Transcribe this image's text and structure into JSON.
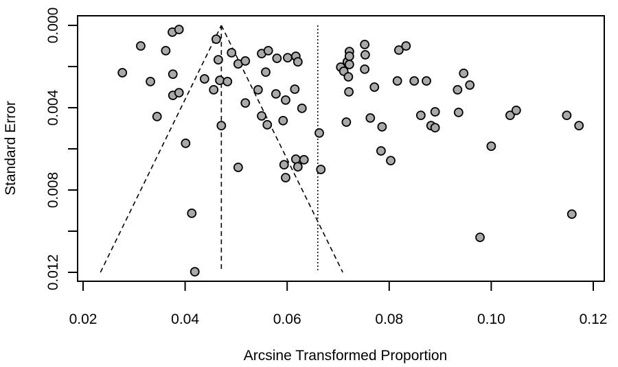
{
  "chart_data": {
    "type": "scatter",
    "subtype": "funnel plot",
    "title": "",
    "xlabel": "Arcsine Transformed Proportion",
    "ylabel": "Standard Error",
    "xlim": [
      0.0185,
      0.1225
    ],
    "ylim": [
      0.0,
      0.01245
    ],
    "y_reversed": true,
    "x_ticks": [
      0.02,
      0.04,
      0.06,
      0.08,
      0.1,
      0.12
    ],
    "x_tick_labels": [
      "0.02",
      "0.04",
      "0.06",
      "0.08",
      "0.10",
      "0.12"
    ],
    "y_ticks": [
      0.0,
      0.002,
      0.004,
      0.006,
      0.008,
      0.01,
      0.012
    ],
    "y_tick_labels": [
      "0.000",
      "",
      "0.004",
      "",
      "0.008",
      "",
      "0.012"
    ],
    "grid": false,
    "point_fill": "#a9a9a9",
    "pooled_estimate": 0.0471,
    "funnel_base_se": 0.012,
    "funnel_left_at_base": 0.0234,
    "funnel_right_at_base": 0.0709,
    "reference_line_dotted": 0.066,
    "points": [
      [
        0.0375,
        0.00033
      ],
      [
        0.0388,
        0.0002
      ],
      [
        0.0313,
        0.001
      ],
      [
        0.0362,
        0.00123
      ],
      [
        0.0277,
        0.0023
      ],
      [
        0.0332,
        0.00273
      ],
      [
        0.0376,
        0.00237
      ],
      [
        0.0376,
        0.0034
      ],
      [
        0.0388,
        0.00327
      ],
      [
        0.0345,
        0.00443
      ],
      [
        0.0461,
        0.00067
      ],
      [
        0.0465,
        0.00167
      ],
      [
        0.0491,
        0.00133
      ],
      [
        0.0504,
        0.00187
      ],
      [
        0.0518,
        0.00173
      ],
      [
        0.055,
        0.00137
      ],
      [
        0.0563,
        0.00123
      ],
      [
        0.0558,
        0.00227
      ],
      [
        0.058,
        0.0016
      ],
      [
        0.0601,
        0.00157
      ],
      [
        0.0617,
        0.0015
      ],
      [
        0.0621,
        0.00177
      ],
      [
        0.0438,
        0.0026
      ],
      [
        0.0456,
        0.00313
      ],
      [
        0.0468,
        0.00267
      ],
      [
        0.0483,
        0.00273
      ],
      [
        0.0543,
        0.00313
      ],
      [
        0.0578,
        0.00333
      ],
      [
        0.0615,
        0.0031
      ],
      [
        0.0597,
        0.00363
      ],
      [
        0.0518,
        0.00377
      ],
      [
        0.0629,
        0.00403
      ],
      [
        0.055,
        0.0044
      ],
      [
        0.0561,
        0.00483
      ],
      [
        0.0592,
        0.00463
      ],
      [
        0.0471,
        0.00487
      ],
      [
        0.0663,
        0.00523
      ],
      [
        0.0401,
        0.00573
      ],
      [
        0.0504,
        0.0069
      ],
      [
        0.0594,
        0.00677
      ],
      [
        0.0617,
        0.0065
      ],
      [
        0.0633,
        0.00653
      ],
      [
        0.0621,
        0.00687
      ],
      [
        0.0597,
        0.0074
      ],
      [
        0.0666,
        0.007
      ],
      [
        0.0413,
        0.00913
      ],
      [
        0.0419,
        0.01197
      ],
      [
        0.0705,
        0.00203
      ],
      [
        0.0711,
        0.00223
      ],
      [
        0.0718,
        0.00177
      ],
      [
        0.072,
        0.0025
      ],
      [
        0.0722,
        0.00127
      ],
      [
        0.0722,
        0.0015
      ],
      [
        0.0722,
        0.0019
      ],
      [
        0.0752,
        0.00093
      ],
      [
        0.0753,
        0.00143
      ],
      [
        0.0752,
        0.00213
      ],
      [
        0.0721,
        0.00323
      ],
      [
        0.0771,
        0.003
      ],
      [
        0.0763,
        0.0045
      ],
      [
        0.0716,
        0.0047
      ],
      [
        0.0784,
        0.0061
      ],
      [
        0.0786,
        0.00493
      ],
      [
        0.0803,
        0.00657
      ],
      [
        0.0819,
        0.0012
      ],
      [
        0.0833,
        0.001
      ],
      [
        0.0816,
        0.0027
      ],
      [
        0.0849,
        0.0027
      ],
      [
        0.0873,
        0.0027
      ],
      [
        0.0862,
        0.00437
      ],
      [
        0.089,
        0.0042
      ],
      [
        0.0882,
        0.00487
      ],
      [
        0.089,
        0.00497
      ],
      [
        0.0934,
        0.00313
      ],
      [
        0.0936,
        0.00423
      ],
      [
        0.0946,
        0.00233
      ],
      [
        0.0958,
        0.0029
      ],
      [
        0.1,
        0.00587
      ],
      [
        0.0978,
        0.0103
      ],
      [
        0.1037,
        0.00437
      ],
      [
        0.1049,
        0.00413
      ],
      [
        0.1148,
        0.00437
      ],
      [
        0.1172,
        0.00487
      ],
      [
        0.1158,
        0.00917
      ]
    ]
  }
}
